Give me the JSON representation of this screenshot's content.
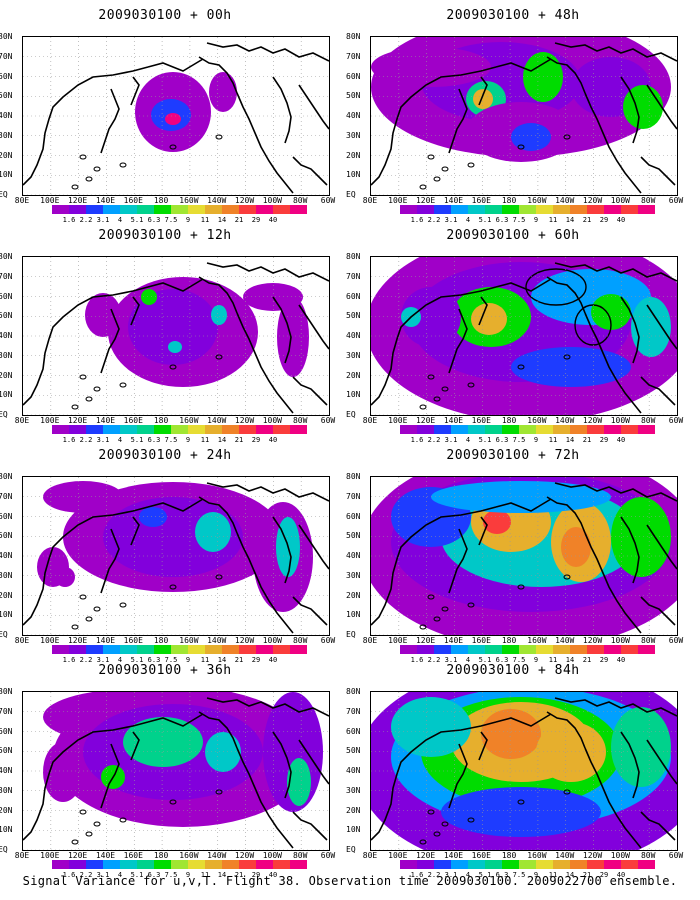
{
  "figure": {
    "footer": "Signal Variance for u,v,T. Flight 38. Observation time 2009030100. 2009022700 ensemble."
  },
  "colorbar": {
    "labels": [
      "1.6",
      "2.2",
      "3.1",
      "4",
      "5.1",
      "6.3",
      "7.5",
      "9",
      "11",
      "14",
      "21",
      "29",
      "40"
    ],
    "colors": [
      "#a000c8",
      "#8200dc",
      "#1e3cff",
      "#00a0ff",
      "#00c8c8",
      "#00d28c",
      "#00dc00",
      "#a0e632",
      "#e6dc32",
      "#e6af2d",
      "#f08228",
      "#fa3c3c",
      "#f00082"
    ]
  },
  "axes": {
    "lat_labels": [
      "80N",
      "70N",
      "60N",
      "50N",
      "40N",
      "30N",
      "20N",
      "10N",
      "EQ"
    ],
    "lon_labels": [
      "80E",
      "100E",
      "120E",
      "140E",
      "160E",
      "180",
      "160W",
      "140W",
      "120W",
      "100W",
      "80W",
      "60W"
    ]
  },
  "panels": [
    {
      "id": "p00",
      "title": "2009030100 + 00h",
      "intensity": 0
    },
    {
      "id": "p12",
      "title": "2009030100 + 12h",
      "intensity": 1
    },
    {
      "id": "p24",
      "title": "2009030100 + 24h",
      "intensity": 2
    },
    {
      "id": "p36",
      "title": "2009030100 + 36h",
      "intensity": 3
    },
    {
      "id": "p48",
      "title": "2009030100 + 48h",
      "intensity": 4
    },
    {
      "id": "p60",
      "title": "2009030100 + 60h",
      "intensity": 5
    },
    {
      "id": "p72",
      "title": "2009030100 + 72h",
      "intensity": 6
    },
    {
      "id": "p84",
      "title": "2009030100 + 84h",
      "intensity": 7
    }
  ]
}
